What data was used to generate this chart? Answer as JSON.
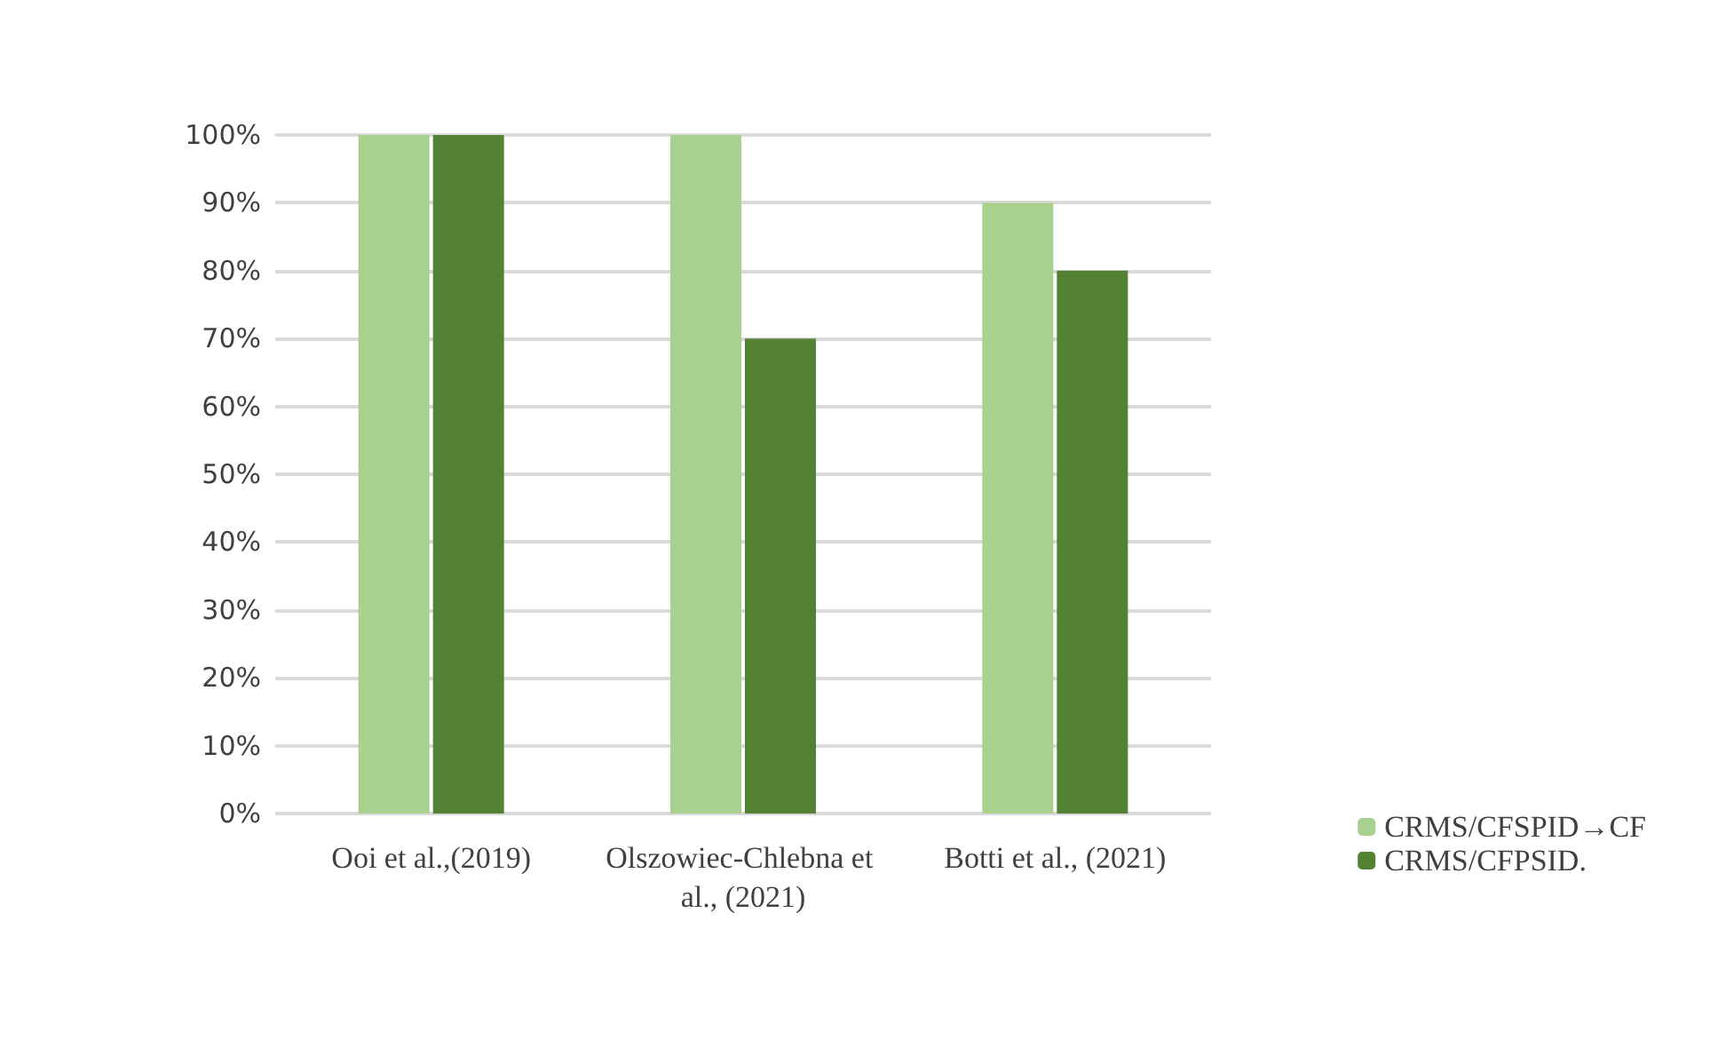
{
  "chart_data": {
    "type": "bar",
    "categories": [
      "Ooi et al.,(2019)",
      "Olszowiec-Chlebna et al., (2021)",
      "Botti et al., (2021)"
    ],
    "series": [
      {
        "name": "CRMS/CFSPID→CF",
        "color": "#a9d18e",
        "values": [
          100,
          100,
          90
        ]
      },
      {
        "name": "CRMS/CFPSID.",
        "color": "#548235",
        "values": [
          100,
          70,
          80
        ]
      }
    ],
    "ylim": [
      0,
      100
    ],
    "yticks": [
      {
        "value": 0,
        "label": "0%"
      },
      {
        "value": 10,
        "label": "10%"
      },
      {
        "value": 20,
        "label": "20%"
      },
      {
        "value": 30,
        "label": "30%"
      },
      {
        "value": 40,
        "label": "40%"
      },
      {
        "value": 50,
        "label": "50%"
      },
      {
        "value": 60,
        "label": "60%"
      },
      {
        "value": 70,
        "label": "70%"
      },
      {
        "value": 80,
        "label": "80%"
      },
      {
        "value": 90,
        "label": "90%"
      },
      {
        "value": 100,
        "label": "100%"
      }
    ],
    "grid": "y",
    "legend": "bottom right"
  }
}
